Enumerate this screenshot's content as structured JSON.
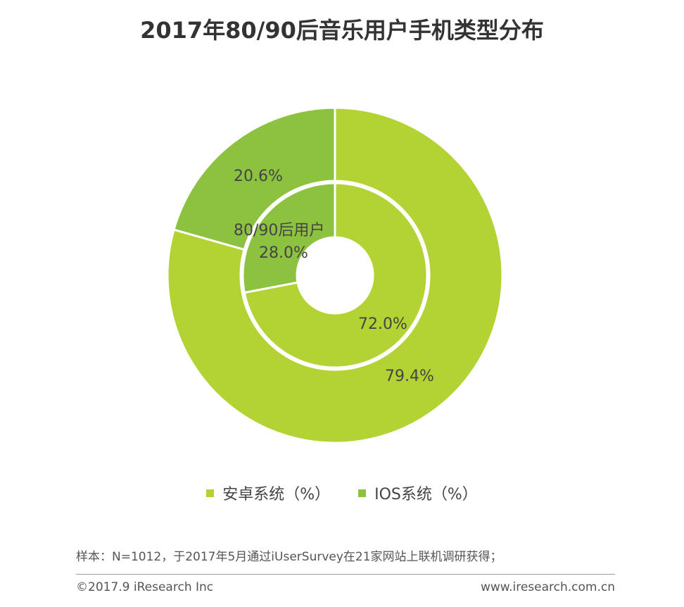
{
  "title": "2017年80/90后音乐用户手机类型分布",
  "chart_data": {
    "type": "pie",
    "title": "2017年80/90后音乐用户手机类型分布",
    "series": [
      {
        "name": "",
        "values": [
          79.4,
          20.6
        ],
        "labels": [
          "79.4%",
          "20.6%"
        ]
      },
      {
        "name": "80/90后用户",
        "values": [
          72.0,
          28.0
        ],
        "labels": [
          "72.0%",
          "28.0%"
        ]
      }
    ],
    "categories": [
      "安卓系统（%）",
      "IOS系统（%）"
    ],
    "colors": {
      "android": "#b3d334",
      "ios": "#8cc23f"
    },
    "legend_position": "bottom"
  },
  "legend": [
    {
      "label": "安卓系统（%）",
      "color": "#b3d334"
    },
    {
      "label": "IOS系统（%）",
      "color": "#8cc23f"
    }
  ],
  "footer": {
    "note": "样本：N=1012，于2017年5月通过iUserSurvey在21家网站上联机调研获得；",
    "copyright": "©2017.9 iResearch Inc",
    "website": "www.iresearch.com.cn"
  }
}
